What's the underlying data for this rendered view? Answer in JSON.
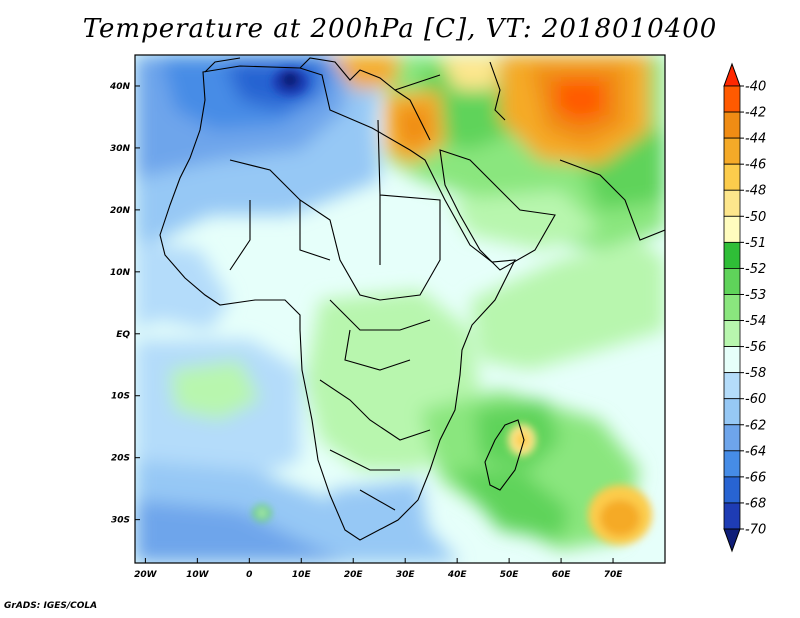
{
  "title": "Temperature at 200hPa [C], VT: 2018010400",
  "credit": "GrADS: IGES/COLA",
  "map": {
    "lon_ticks": [
      "20W",
      "10W",
      "0",
      "10E",
      "20E",
      "30E",
      "40E",
      "50E",
      "60E",
      "70E"
    ],
    "lon_values": [
      -20,
      -10,
      0,
      10,
      20,
      30,
      40,
      50,
      60,
      70
    ],
    "lat_ticks": [
      "40N",
      "30N",
      "20N",
      "10N",
      "EQ",
      "10S",
      "20S",
      "30S"
    ],
    "lat_values": [
      40,
      30,
      20,
      10,
      0,
      -10,
      -20,
      -30
    ],
    "lon_range": [
      -22,
      80
    ],
    "lat_range": [
      -37,
      45
    ]
  },
  "colorbar": {
    "labels": [
      "-40",
      "-42",
      "-44",
      "-46",
      "-48",
      "-50",
      "-51",
      "-52",
      "-53",
      "-54",
      "-56",
      "-58",
      "-60",
      "-62",
      "-64",
      "-66",
      "-68",
      "-70"
    ],
    "colors": [
      "#ff2800",
      "#ff5a00",
      "#f08c14",
      "#f5aa28",
      "#fccc4c",
      "#fde68c",
      "#fffcbe",
      "#2fbe37",
      "#5fd35a",
      "#8ae67e",
      "#b8f6ae",
      "#e6fffa",
      "#b4dcfa",
      "#96c8f5",
      "#6ea5eb",
      "#468ce6",
      "#2864d2",
      "#1e3cb4",
      "#0f1e78"
    ]
  }
}
